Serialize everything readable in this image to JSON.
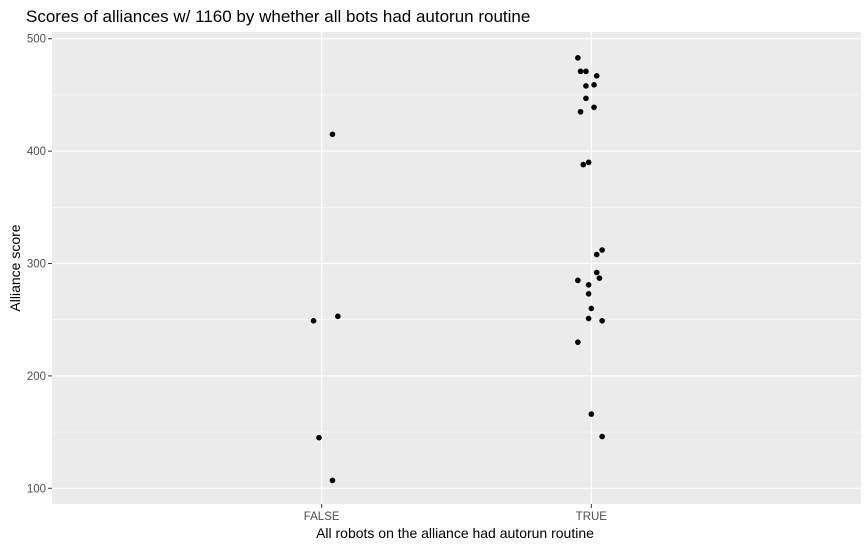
{
  "chart_data": {
    "type": "scatter",
    "title": "Scores of alliances w/ 1160 by whether all bots had autorun routine",
    "xlabel": "All robots on the alliance had autorun routine",
    "ylabel": "Alliance score",
    "categories": [
      "FALSE",
      "TRUE"
    ],
    "ylim": [
      86,
      506
    ],
    "yticks": [
      100,
      200,
      300,
      400,
      500
    ],
    "grid": true,
    "legend": "none",
    "colors": {
      "panel": "#ebebeb",
      "grid": "#ffffff",
      "point": "#000000"
    },
    "points": [
      {
        "x": "FALSE",
        "jitter": 0.04,
        "y": 415
      },
      {
        "x": "FALSE",
        "jitter": 0.06,
        "y": 253
      },
      {
        "x": "FALSE",
        "jitter": -0.03,
        "y": 249
      },
      {
        "x": "FALSE",
        "jitter": -0.01,
        "y": 145
      },
      {
        "x": "FALSE",
        "jitter": 0.04,
        "y": 107
      },
      {
        "x": "TRUE",
        "jitter": -0.05,
        "y": 483
      },
      {
        "x": "TRUE",
        "jitter": -0.04,
        "y": 471
      },
      {
        "x": "TRUE",
        "jitter": -0.02,
        "y": 471
      },
      {
        "x": "TRUE",
        "jitter": 0.02,
        "y": 467
      },
      {
        "x": "TRUE",
        "jitter": -0.02,
        "y": 458
      },
      {
        "x": "TRUE",
        "jitter": 0.01,
        "y": 459
      },
      {
        "x": "TRUE",
        "jitter": -0.02,
        "y": 447
      },
      {
        "x": "TRUE",
        "jitter": 0.01,
        "y": 439
      },
      {
        "x": "TRUE",
        "jitter": -0.04,
        "y": 435
      },
      {
        "x": "TRUE",
        "jitter": -0.01,
        "y": 390
      },
      {
        "x": "TRUE",
        "jitter": -0.03,
        "y": 388
      },
      {
        "x": "TRUE",
        "jitter": 0.04,
        "y": 312
      },
      {
        "x": "TRUE",
        "jitter": 0.02,
        "y": 308
      },
      {
        "x": "TRUE",
        "jitter": 0.02,
        "y": 292
      },
      {
        "x": "TRUE",
        "jitter": 0.03,
        "y": 287
      },
      {
        "x": "TRUE",
        "jitter": -0.05,
        "y": 285
      },
      {
        "x": "TRUE",
        "jitter": -0.01,
        "y": 281
      },
      {
        "x": "TRUE",
        "jitter": -0.01,
        "y": 273
      },
      {
        "x": "TRUE",
        "jitter": 0.0,
        "y": 260
      },
      {
        "x": "TRUE",
        "jitter": -0.01,
        "y": 251
      },
      {
        "x": "TRUE",
        "jitter": 0.04,
        "y": 249
      },
      {
        "x": "TRUE",
        "jitter": -0.05,
        "y": 230
      },
      {
        "x": "TRUE",
        "jitter": 0.0,
        "y": 166
      },
      {
        "x": "TRUE",
        "jitter": 0.04,
        "y": 146
      }
    ]
  }
}
